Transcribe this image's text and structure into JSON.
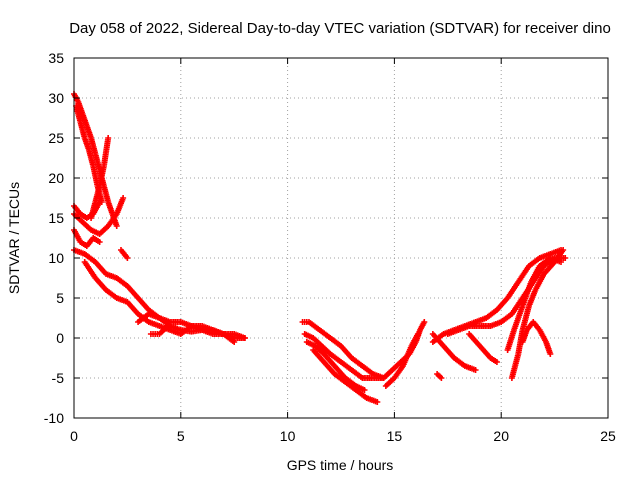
{
  "chart_data": {
    "type": "scatter",
    "title": "Day 058 of 2022, Sidereal Day-to-day VTEC variation (SDTVAR) for receiver dino",
    "xlabel": "GPS time / hours",
    "ylabel": "SDTVAR / TECUs",
    "xlim": [
      0,
      25
    ],
    "ylim": [
      -10,
      35
    ],
    "xticks": [
      0,
      5,
      10,
      15,
      20,
      25
    ],
    "yticks": [
      -10,
      -5,
      0,
      5,
      10,
      15,
      20,
      25,
      30,
      35
    ],
    "xtick_labels": [
      "0",
      "5",
      "10",
      "15",
      "20",
      "25"
    ],
    "ytick_labels": [
      "-10",
      "-5",
      "0",
      "5",
      "10",
      "15",
      "20",
      "25",
      "30",
      "35"
    ],
    "grid": true,
    "marker": "plus",
    "color": "#ff0000",
    "series": [
      {
        "name": "track-1",
        "points": [
          [
            0.0,
            30.5
          ],
          [
            0.2,
            29.5
          ],
          [
            0.4,
            28.0
          ],
          [
            0.6,
            26.5
          ],
          [
            0.8,
            25.0
          ],
          [
            1.0,
            23.0
          ],
          [
            1.2,
            21.0
          ],
          [
            1.4,
            19.0
          ],
          [
            1.6,
            17.0
          ],
          [
            1.8,
            15.5
          ],
          [
            2.0,
            14.0
          ]
        ]
      },
      {
        "name": "track-2",
        "points": [
          [
            0.1,
            29.0
          ],
          [
            0.3,
            27.0
          ],
          [
            0.5,
            25.0
          ],
          [
            0.7,
            23.5
          ],
          [
            0.9,
            21.5
          ],
          [
            1.1,
            19.0
          ],
          [
            1.3,
            17.0
          ]
        ]
      },
      {
        "name": "track-3",
        "points": [
          [
            0.8,
            15.0
          ],
          [
            1.0,
            17.0
          ],
          [
            1.2,
            19.0
          ],
          [
            1.4,
            21.5
          ],
          [
            1.6,
            25.0
          ]
        ]
      },
      {
        "name": "track-4",
        "points": [
          [
            0.0,
            16.5
          ],
          [
            0.3,
            15.5
          ],
          [
            0.6,
            15.0
          ],
          [
            0.9,
            15.5
          ],
          [
            1.2,
            17.0
          ]
        ]
      },
      {
        "name": "track-5",
        "points": [
          [
            0.0,
            15.5
          ],
          [
            0.4,
            14.5
          ],
          [
            0.8,
            13.5
          ],
          [
            1.2,
            13.0
          ],
          [
            1.6,
            14.0
          ],
          [
            2.0,
            15.5
          ],
          [
            2.3,
            17.5
          ]
        ]
      },
      {
        "name": "track-6",
        "points": [
          [
            0.0,
            13.5
          ],
          [
            0.3,
            12.0
          ],
          [
            0.6,
            11.5
          ],
          [
            0.9,
            12.5
          ],
          [
            1.2,
            12.0
          ]
        ]
      },
      {
        "name": "track-7",
        "points": [
          [
            0.0,
            11.0
          ],
          [
            0.5,
            10.5
          ],
          [
            1.0,
            9.5
          ],
          [
            1.5,
            8.0
          ],
          [
            2.0,
            7.5
          ],
          [
            2.5,
            6.5
          ],
          [
            3.0,
            5.0
          ],
          [
            3.5,
            3.5
          ],
          [
            4.0,
            2.5
          ],
          [
            4.5,
            1.5
          ],
          [
            5.0,
            1.0
          ],
          [
            5.5,
            0.8
          ],
          [
            6.0,
            1.0
          ],
          [
            6.5,
            0.5
          ],
          [
            7.0,
            0.5
          ],
          [
            7.5,
            0.0
          ],
          [
            8.0,
            0.0
          ]
        ]
      },
      {
        "name": "track-8",
        "points": [
          [
            0.5,
            9.5
          ],
          [
            1.0,
            7.5
          ],
          [
            1.5,
            6.0
          ],
          [
            2.0,
            5.0
          ],
          [
            2.5,
            4.5
          ],
          [
            3.0,
            3.0
          ],
          [
            3.5,
            2.0
          ],
          [
            4.0,
            1.5
          ],
          [
            4.5,
            1.0
          ],
          [
            5.0,
            0.5
          ],
          [
            5.5,
            1.5
          ],
          [
            6.0,
            1.5
          ],
          [
            6.5,
            1.0
          ],
          [
            7.0,
            0.5
          ],
          [
            7.5,
            0.5
          ],
          [
            8.0,
            0.0
          ]
        ]
      },
      {
        "name": "track-9",
        "points": [
          [
            2.2,
            11.0
          ],
          [
            2.5,
            10.0
          ]
        ]
      },
      {
        "name": "track-10",
        "points": [
          [
            3.0,
            2.0
          ],
          [
            3.5,
            3.0
          ],
          [
            4.0,
            2.5
          ],
          [
            4.5,
            2.0
          ],
          [
            5.0,
            2.0
          ],
          [
            5.5,
            1.5
          ],
          [
            6.0,
            1.0
          ],
          [
            6.5,
            1.0
          ],
          [
            7.0,
            0.5
          ],
          [
            7.5,
            -0.5
          ]
        ]
      },
      {
        "name": "track-11",
        "points": [
          [
            3.6,
            0.5
          ],
          [
            4.0,
            0.5
          ],
          [
            4.4,
            1.5
          ]
        ]
      },
      {
        "name": "track-12",
        "points": [
          [
            10.7,
            2.0
          ],
          [
            11.0,
            2.0
          ],
          [
            11.5,
            1.0
          ],
          [
            12.0,
            0.0
          ],
          [
            12.5,
            -1.0
          ],
          [
            13.0,
            -2.5
          ],
          [
            13.5,
            -3.5
          ],
          [
            14.0,
            -4.5
          ],
          [
            14.5,
            -5.0
          ]
        ]
      },
      {
        "name": "track-13",
        "points": [
          [
            10.8,
            0.5
          ],
          [
            11.2,
            0.0
          ],
          [
            11.6,
            -1.0
          ],
          [
            12.0,
            -2.0
          ],
          [
            12.5,
            -3.0
          ],
          [
            13.0,
            -4.0
          ],
          [
            13.5,
            -5.0
          ],
          [
            14.0,
            -5.0
          ],
          [
            14.5,
            -5.0
          ]
        ]
      },
      {
        "name": "track-14",
        "points": [
          [
            10.9,
            -0.5
          ],
          [
            11.3,
            -1.0
          ],
          [
            11.7,
            -2.0
          ],
          [
            12.2,
            -3.5
          ],
          [
            12.7,
            -5.0
          ],
          [
            13.2,
            -6.0
          ],
          [
            13.6,
            -6.5
          ]
        ]
      },
      {
        "name": "track-15",
        "points": [
          [
            11.2,
            -1.5
          ],
          [
            11.7,
            -3.0
          ],
          [
            12.2,
            -4.5
          ],
          [
            12.7,
            -5.5
          ],
          [
            13.2,
            -6.5
          ],
          [
            13.7,
            -7.5
          ],
          [
            14.2,
            -8.0
          ]
        ]
      },
      {
        "name": "track-16",
        "points": [
          [
            14.5,
            -5.0
          ],
          [
            14.9,
            -4.0
          ],
          [
            15.3,
            -3.0
          ],
          [
            15.7,
            -2.0
          ],
          [
            16.0,
            -0.5
          ],
          [
            16.2,
            1.0
          ],
          [
            16.4,
            2.0
          ]
        ]
      },
      {
        "name": "track-17",
        "points": [
          [
            14.6,
            -6.0
          ],
          [
            15.0,
            -5.0
          ],
          [
            15.4,
            -3.5
          ],
          [
            15.8,
            -1.0
          ],
          [
            16.1,
            0.5
          ]
        ]
      },
      {
        "name": "track-18",
        "points": [
          [
            17.0,
            -4.5
          ],
          [
            17.2,
            -5.0
          ]
        ]
      },
      {
        "name": "track-19",
        "points": [
          [
            16.8,
            0.5
          ],
          [
            17.3,
            -1.0
          ],
          [
            17.8,
            -2.5
          ],
          [
            18.3,
            -3.5
          ],
          [
            18.8,
            -4.0
          ]
        ]
      },
      {
        "name": "track-20",
        "points": [
          [
            17.5,
            0.5
          ],
          [
            18.0,
            1.0
          ],
          [
            18.5,
            1.5
          ],
          [
            19.0,
            1.5
          ],
          [
            19.5,
            1.5
          ],
          [
            20.0,
            2.0
          ],
          [
            20.5,
            3.0
          ],
          [
            21.0,
            5.0
          ],
          [
            21.5,
            7.0
          ],
          [
            22.0,
            9.0
          ],
          [
            22.5,
            10.0
          ],
          [
            23.0,
            10.0
          ]
        ]
      },
      {
        "name": "track-21",
        "points": [
          [
            16.8,
            -0.5
          ],
          [
            17.3,
            0.5
          ],
          [
            17.8,
            1.0
          ],
          [
            18.3,
            1.5
          ],
          [
            18.8,
            2.0
          ],
          [
            19.3,
            2.5
          ],
          [
            19.8,
            3.5
          ],
          [
            20.3,
            5.0
          ],
          [
            20.8,
            7.0
          ],
          [
            21.3,
            9.0
          ],
          [
            21.8,
            10.0
          ],
          [
            22.3,
            10.5
          ],
          [
            22.8,
            11.0
          ]
        ]
      },
      {
        "name": "track-22",
        "points": [
          [
            18.5,
            0.5
          ],
          [
            19.0,
            -1.0
          ],
          [
            19.5,
            -2.5
          ],
          [
            19.8,
            -3.0
          ]
        ]
      },
      {
        "name": "track-23",
        "points": [
          [
            20.3,
            -1.5
          ],
          [
            20.6,
            1.0
          ],
          [
            21.0,
            4.0
          ],
          [
            21.4,
            7.0
          ],
          [
            21.8,
            9.0
          ],
          [
            22.3,
            10.0
          ],
          [
            22.8,
            9.5
          ]
        ]
      },
      {
        "name": "track-24",
        "points": [
          [
            20.5,
            -5.0
          ],
          [
            20.8,
            -2.0
          ],
          [
            21.0,
            1.0
          ],
          [
            21.3,
            4.0
          ],
          [
            21.6,
            6.0
          ],
          [
            22.0,
            8.0
          ],
          [
            22.5,
            9.5
          ],
          [
            22.9,
            11.0
          ]
        ]
      },
      {
        "name": "track-25",
        "points": [
          [
            21.0,
            -0.5
          ],
          [
            21.2,
            1.0
          ],
          [
            21.5,
            2.0
          ],
          [
            21.8,
            1.0
          ],
          [
            22.1,
            -0.5
          ],
          [
            22.3,
            -2.0
          ]
        ]
      }
    ]
  }
}
